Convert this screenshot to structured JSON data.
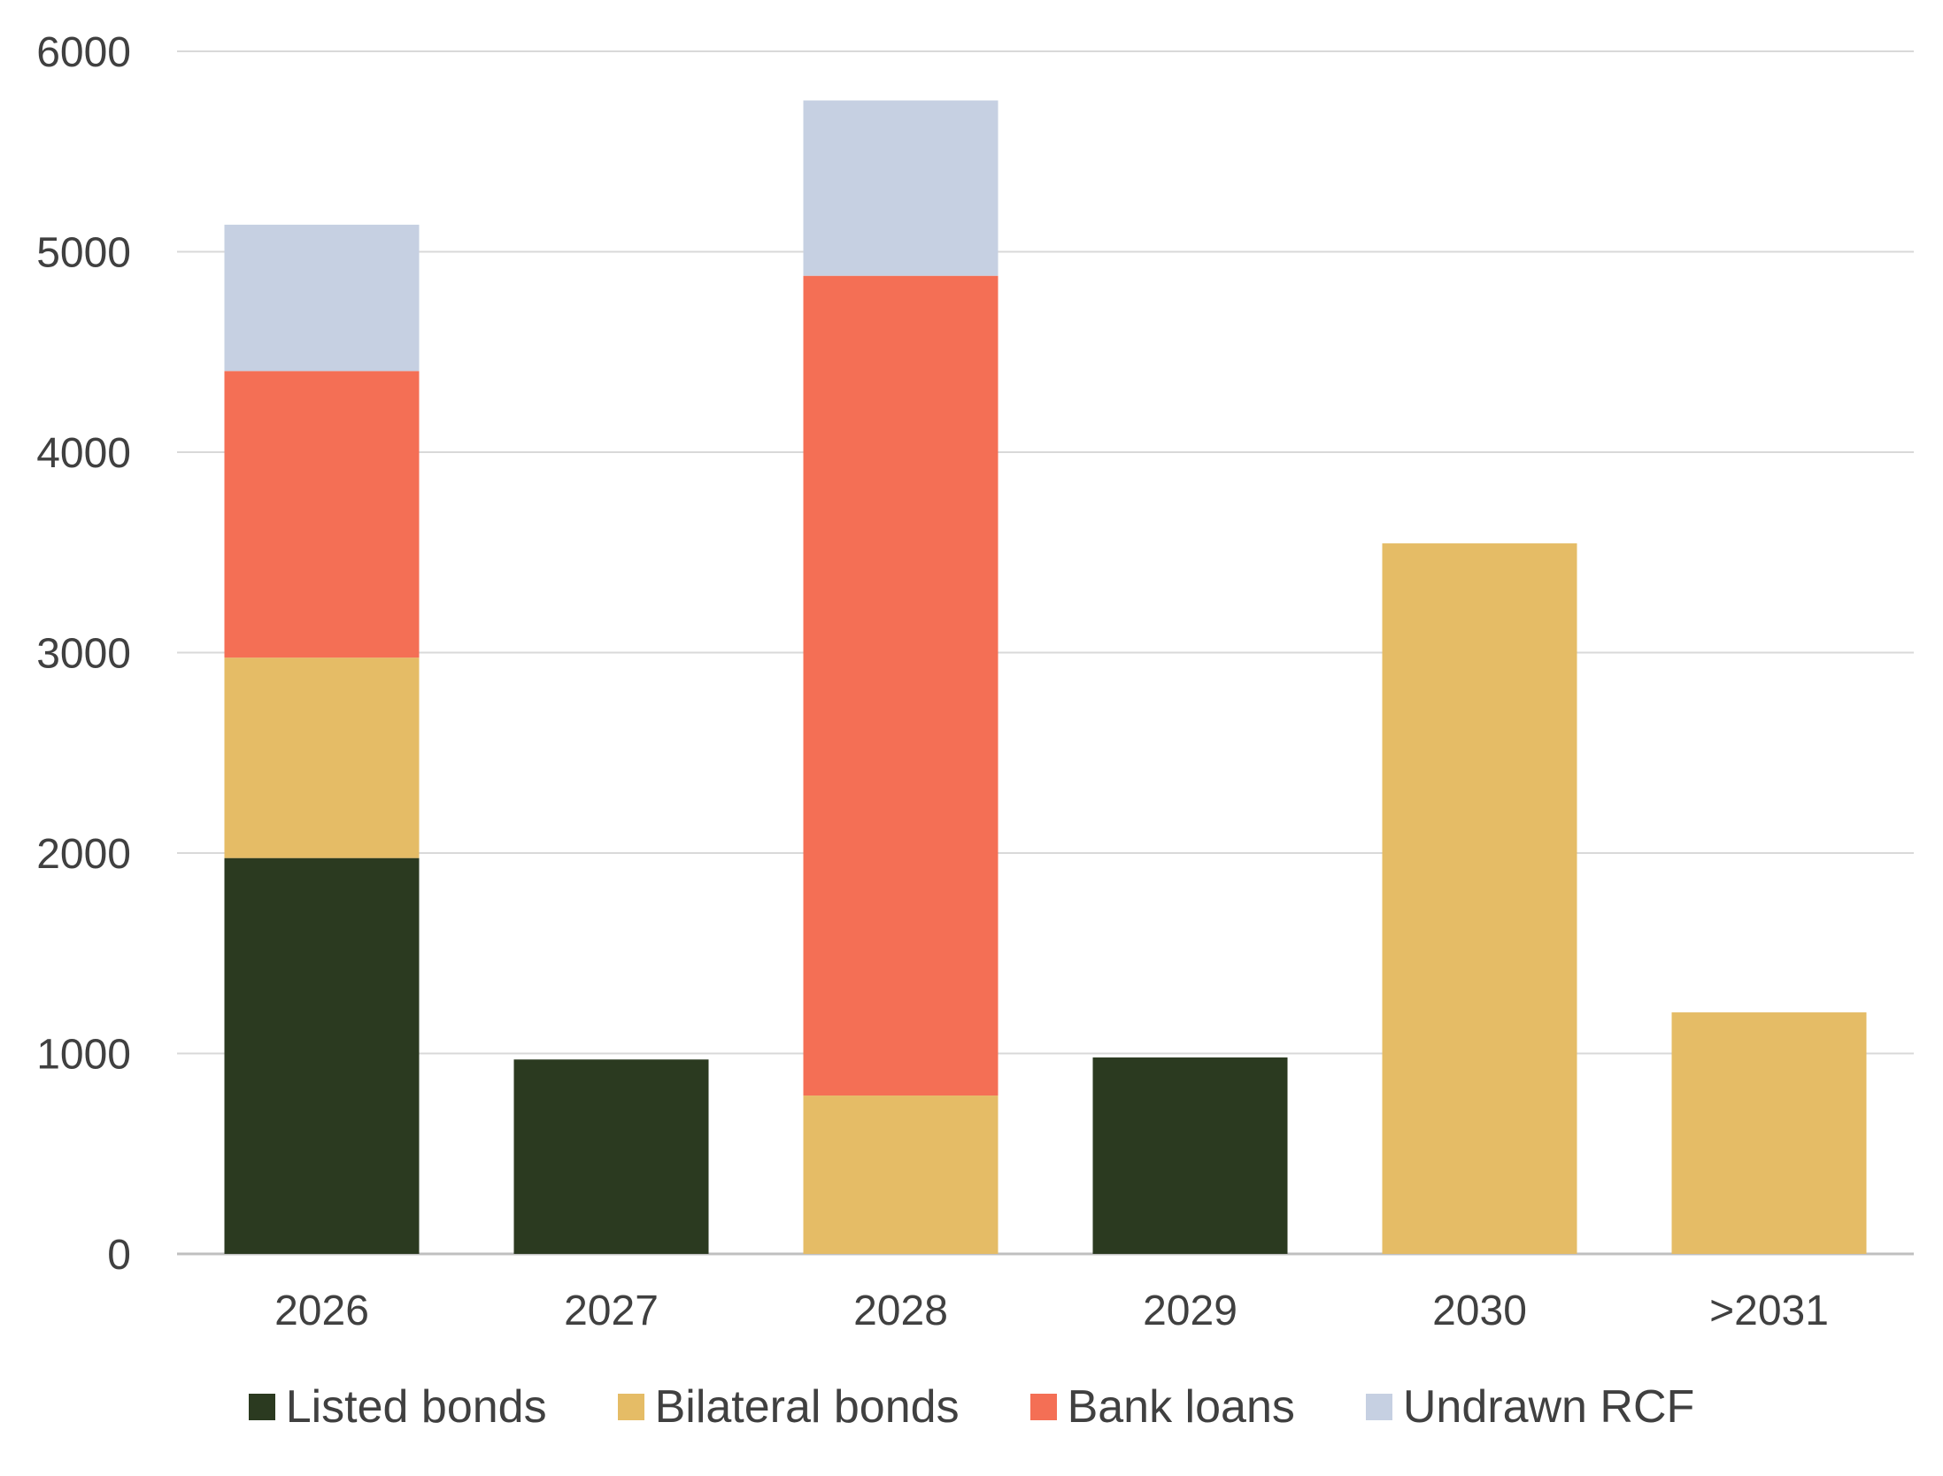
{
  "chart_data": {
    "type": "bar",
    "stacked": true,
    "categories": [
      "2026",
      "2027",
      "2028",
      "2029",
      "2030",
      ">2031"
    ],
    "series": [
      {
        "name": "Listed bonds",
        "color": "#2B3A20",
        "values": [
          1975,
          970,
          0,
          980,
          0,
          0
        ]
      },
      {
        "name": "Bilateral bonds",
        "color": "#E5BC66",
        "values": [
          1000,
          0,
          790,
          0,
          3545,
          1205
        ]
      },
      {
        "name": "Bank loans",
        "color": "#F46F55",
        "values": [
          1430,
          0,
          4090,
          0,
          0,
          0
        ]
      },
      {
        "name": "Undrawn RCF",
        "color": "#C6D0E2",
        "values": [
          730,
          0,
          875,
          0,
          0,
          0
        ]
      }
    ],
    "ylim": [
      0,
      6000
    ],
    "yticks": [
      "0",
      "1000",
      "2000",
      "3000",
      "4000",
      "5000",
      "6000"
    ],
    "grid": true,
    "legend_position": "bottom",
    "title": "",
    "xlabel": "",
    "ylabel": ""
  }
}
